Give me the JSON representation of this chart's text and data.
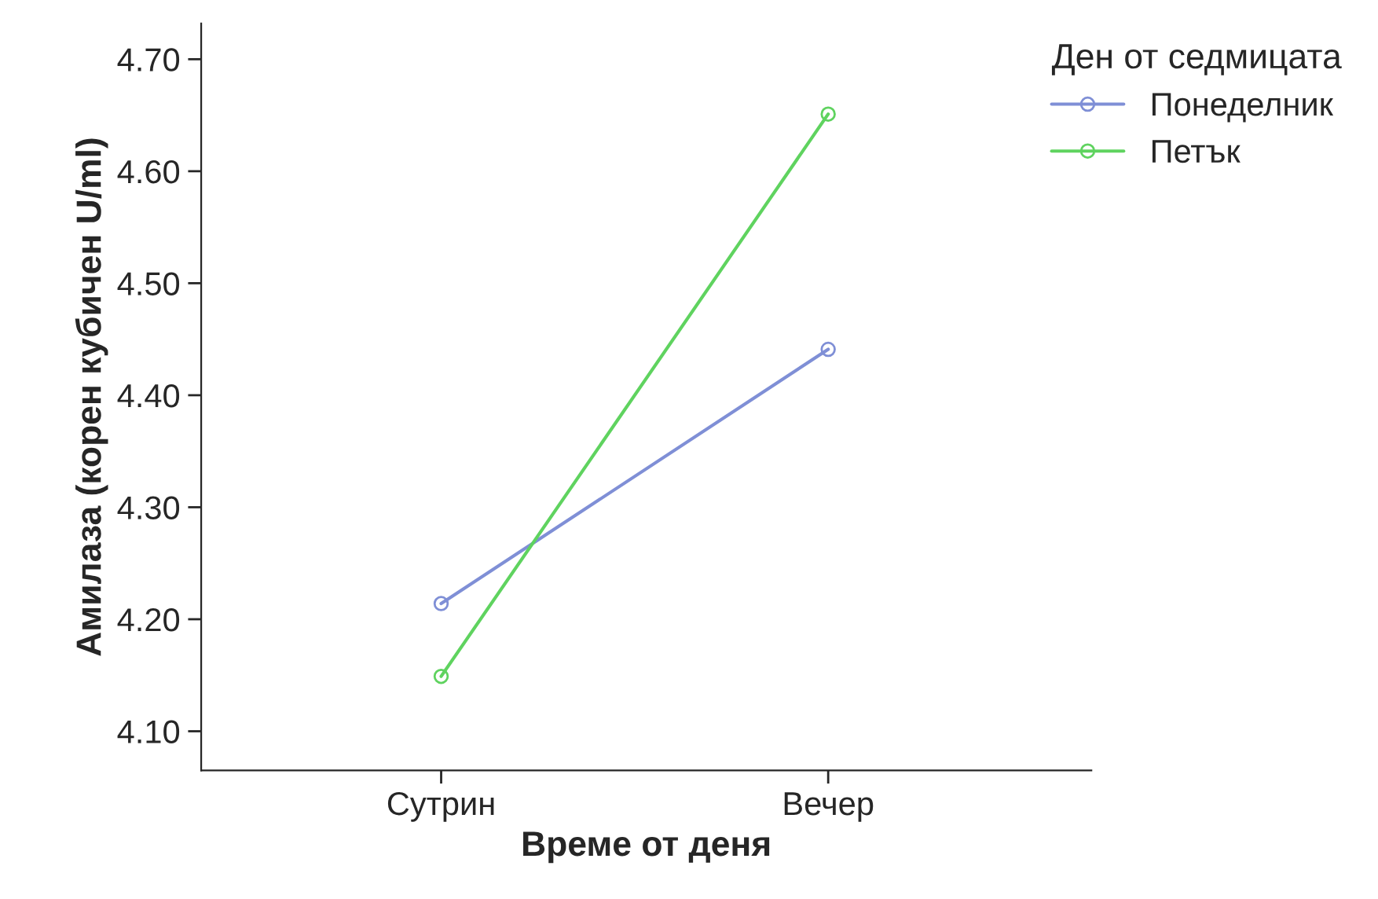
{
  "chart_data": {
    "type": "line",
    "xlabel": "Време от деня",
    "ylabel": "Амилаза (корен кубичен U/ml)",
    "legend_title": "Ден от седмицата",
    "categories": [
      "Сутрин",
      "Вечер"
    ],
    "series": [
      {
        "name": "Понеделник",
        "color": "#7f8fd6",
        "values": [
          4.214,
          4.441
        ]
      },
      {
        "name": "Петък",
        "color": "#5fd35f",
        "values": [
          4.149,
          4.651
        ]
      }
    ],
    "ylim": [
      4.065,
      4.732
    ],
    "yticks": [
      {
        "value": 4.1,
        "label": "4.10"
      },
      {
        "value": 4.2,
        "label": "4.20"
      },
      {
        "value": 4.3,
        "label": "4.30"
      },
      {
        "value": 4.4,
        "label": "4.40"
      },
      {
        "value": 4.5,
        "label": "4.50"
      },
      {
        "value": 4.6,
        "label": "4.60"
      },
      {
        "value": 4.7,
        "label": "4.70"
      }
    ],
    "grid": false,
    "legend": "top right",
    "marker": "circle",
    "line_style": "solid"
  }
}
